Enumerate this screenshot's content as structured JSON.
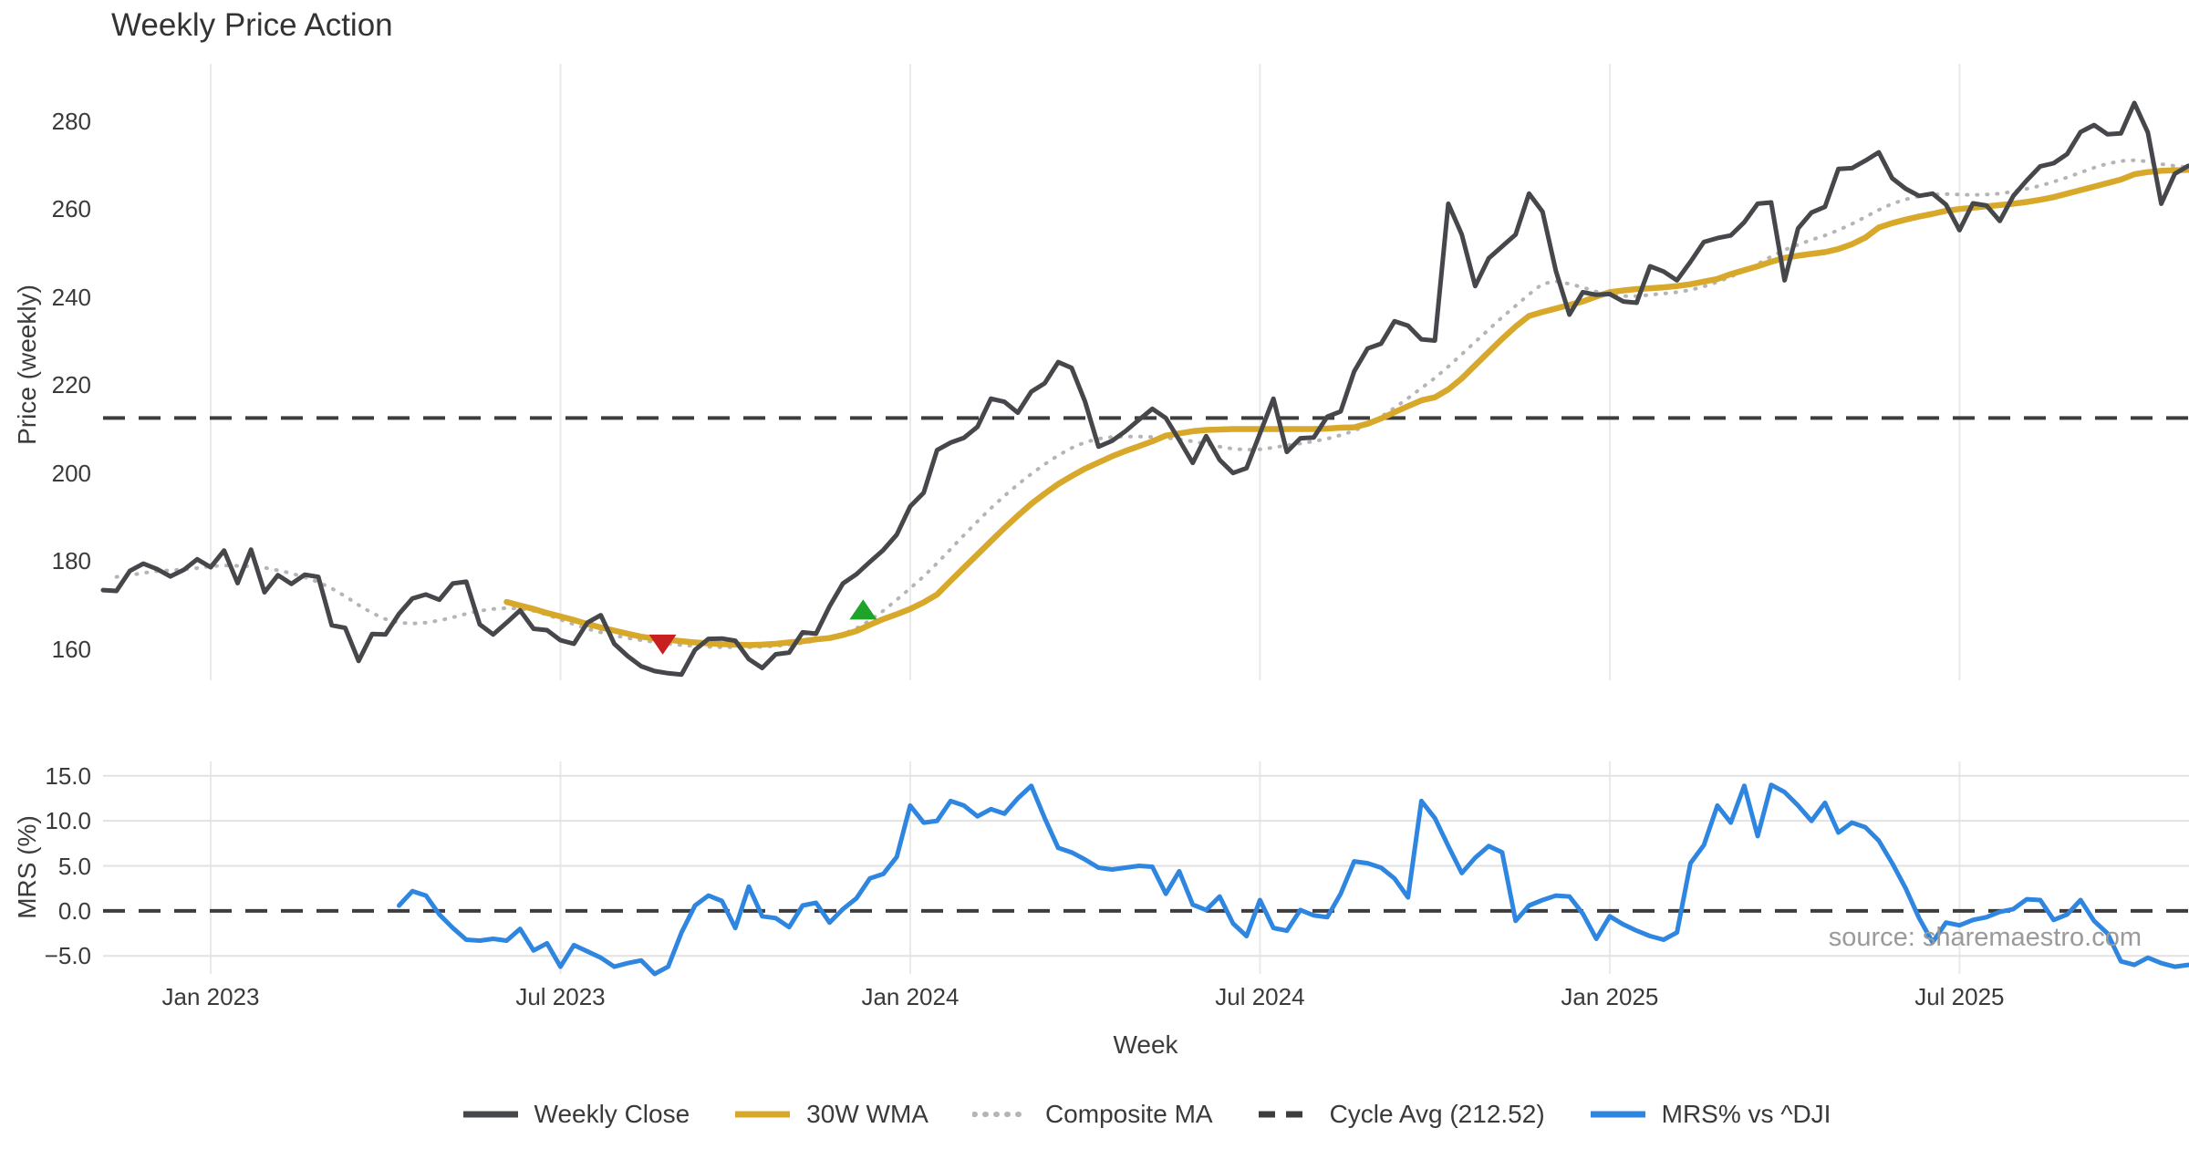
{
  "title": "Weekly Price Action",
  "source_note": "source: sharemaestro.com",
  "chart_data": {
    "type": "line",
    "x_unit": "weeks (weekly data, ~Nov 2022 to ~Nov 2025)",
    "xlabel": "Week",
    "total_weeks": 155.06,
    "xticks": [
      {
        "week": 8,
        "label": "Jan 2023"
      },
      {
        "week": 34,
        "label": "Jul 2023"
      },
      {
        "week": 60,
        "label": "Jan 2024"
      },
      {
        "week": 86,
        "label": "Jul 2024"
      },
      {
        "week": 112,
        "label": "Jan 2025"
      },
      {
        "week": 138,
        "label": "Jul 2025"
      }
    ],
    "panels": {
      "price": {
        "ylabel": "Price (weekly)",
        "ylim": [
          152.9,
          293.0
        ],
        "yticks": [
          {
            "v": 160,
            "label": "160"
          },
          {
            "v": 180,
            "label": "180"
          },
          {
            "v": 200,
            "label": "200"
          },
          {
            "v": 220,
            "label": "220"
          },
          {
            "v": 240,
            "label": "240"
          },
          {
            "v": 260,
            "label": "260"
          },
          {
            "v": 280,
            "label": "280"
          }
        ],
        "grid_y": []
      },
      "mrs": {
        "ylabel": "MRS (%)",
        "ylim": [
          -7.0,
          16.6
        ],
        "yticks": [
          {
            "v": 15,
            "label": "15.0"
          },
          {
            "v": 10,
            "label": "10.0"
          },
          {
            "v": 5,
            "label": "5.0"
          },
          {
            "v": 0,
            "label": "0.0"
          },
          {
            "v": -5,
            "label": "−5.0"
          }
        ],
        "grid_y": [
          15,
          10,
          5,
          -5
        ]
      }
    },
    "hlines": [
      {
        "panel": "price",
        "value": 212.52,
        "color": "#3d3d3d",
        "width": 4,
        "dash": "24 15",
        "name": "cycle-avg-line"
      },
      {
        "panel": "mrs",
        "value": 0,
        "color": "#3d3d3d",
        "width": 4,
        "dash": "24 15",
        "name": "zero-line"
      }
    ],
    "series": [
      {
        "name": "Composite MA",
        "panel": "price",
        "color": "#b5b5b5",
        "width": 4,
        "style": "dotted",
        "start_week": 1,
        "values": [
          176.4,
          176.8,
          177.3,
          177.7,
          177.9,
          178.1,
          178.4,
          178.8,
          179.0,
          178.9,
          178.8,
          178.5,
          177.9,
          177.2,
          176.3,
          175.2,
          173.8,
          172.0,
          170.0,
          168.2,
          166.8,
          166.0,
          165.8,
          166.0,
          166.5,
          167.2,
          168.0,
          168.7,
          169.1,
          169.3,
          169.2,
          168.7,
          167.8,
          166.7,
          165.6,
          164.6,
          163.8,
          163.1,
          162.5,
          162.0,
          161.6,
          161.2,
          160.9,
          160.7,
          160.5,
          160.4,
          160.4,
          160.4,
          160.5,
          160.7,
          161.0,
          161.4,
          161.9,
          162.5,
          163.4,
          164.7,
          166.5,
          168.7,
          171.2,
          173.8,
          176.5,
          179.5,
          182.7,
          185.9,
          189.0,
          192.0,
          194.8,
          197.4,
          199.8,
          202.0,
          204.0,
          205.7,
          207.0,
          207.8,
          208.2,
          208.3,
          208.3,
          208.2,
          208.0,
          207.7,
          207.2,
          206.6,
          206.0,
          205.5,
          205.3,
          205.4,
          205.8,
          206.3,
          206.7,
          207.2,
          207.8,
          208.6,
          209.6,
          211.0,
          212.8,
          214.8,
          217.0,
          219.3,
          221.6,
          224.2,
          227.0,
          229.8,
          232.6,
          235.4,
          238.0,
          240.6,
          243.0,
          243.6,
          243.0,
          242.2,
          241.2,
          240.5,
          240.2,
          240.2,
          240.5,
          240.8,
          241.1,
          241.6,
          242.4,
          243.4,
          244.6,
          246.0,
          247.5,
          249.2,
          250.7,
          251.9,
          253.0,
          254.0,
          255.2,
          256.6,
          258.2,
          259.8,
          261.2,
          262.2,
          262.9,
          263.3,
          263.4,
          263.3,
          263.2,
          263.3,
          263.5,
          264.0,
          264.6,
          265.3,
          266.2,
          267.2,
          268.3,
          269.4,
          270.3,
          270.9,
          271.1,
          270.8,
          270.2,
          269.8,
          269.5
        ]
      },
      {
        "name": "30W WMA",
        "panel": "price",
        "color": "#d7a82a",
        "width": 6.5,
        "style": "solid",
        "start_week": 30,
        "values": [
          170.7,
          169.9,
          169.1,
          168.2,
          167.4,
          166.6,
          165.7,
          164.9,
          164.2,
          163.5,
          162.8,
          162.4,
          162.1,
          161.8,
          161.5,
          161.3,
          161.1,
          161.0,
          160.9,
          161.0,
          161.2,
          161.5,
          161.8,
          162.2,
          162.5,
          163.2,
          164.1,
          165.5,
          166.8,
          167.9,
          169.1,
          170.6,
          172.4,
          175.5,
          178.5,
          181.5,
          184.5,
          187.5,
          190.3,
          193.0,
          195.3,
          197.5,
          199.3,
          201.0,
          202.4,
          203.8,
          205.0,
          206.1,
          207.2,
          208.5,
          209.0,
          209.5,
          209.8,
          209.9,
          210.0,
          210.0,
          210.0,
          210.0,
          210.0,
          210.0,
          210.0,
          210.1,
          210.3,
          210.4,
          211.2,
          212.4,
          213.8,
          215.2,
          216.5,
          217.2,
          219.0,
          221.5,
          224.5,
          227.5,
          230.5,
          233.3,
          235.7,
          236.6,
          237.4,
          238.2,
          239.0,
          240.1,
          241.1,
          241.5,
          241.8,
          242.0,
          242.2,
          242.5,
          242.9,
          243.5,
          244.1,
          245.2,
          246.1,
          247.0,
          248.0,
          248.9,
          249.4,
          249.8,
          250.2,
          250.9,
          252.0,
          253.5,
          255.8,
          256.8,
          257.6,
          258.3,
          258.9,
          259.6,
          260.0,
          260.3,
          260.6,
          260.9,
          261.2,
          261.6,
          262.1,
          262.7,
          263.5,
          264.3,
          265.1,
          265.9,
          266.7,
          267.9,
          268.4,
          268.7,
          268.8,
          268.9
        ]
      },
      {
        "name": "Weekly Close",
        "panel": "price",
        "color": "#45474b",
        "width": 5,
        "style": "solid",
        "start_week": 0,
        "values": [
          173.4,
          173.2,
          177.8,
          179.4,
          178.2,
          176.5,
          178.0,
          180.4,
          178.6,
          182.4,
          175.0,
          182.6,
          172.9,
          176.8,
          174.8,
          176.9,
          176.4,
          165.4,
          164.8,
          157.3,
          163.4,
          163.3,
          168.0,
          171.5,
          172.4,
          171.2,
          174.9,
          175.3,
          165.6,
          163.3,
          166.0,
          168.8,
          164.6,
          164.3,
          162.0,
          161.2,
          166.0,
          167.7,
          161.2,
          158.4,
          156.1,
          155.0,
          154.5,
          154.2,
          159.8,
          162.3,
          162.4,
          161.9,
          157.7,
          155.7,
          158.8,
          159.2,
          163.8,
          163.5,
          169.7,
          174.9,
          177.0,
          179.8,
          182.5,
          186.0,
          192.4,
          195.5,
          205.2,
          206.9,
          208.0,
          210.5,
          216.9,
          216.2,
          213.7,
          218.5,
          220.4,
          225.2,
          223.9,
          216.2,
          206.0,
          207.3,
          209.5,
          212.1,
          214.6,
          212.5,
          207.5,
          202.3,
          208.4,
          203.0,
          200.0,
          201.1,
          209.0,
          216.9,
          204.8,
          207.9,
          208.1,
          212.8,
          214.0,
          223.1,
          228.3,
          229.4,
          234.5,
          233.5,
          230.4,
          230.1,
          261.2,
          254.2,
          242.5,
          248.8,
          251.5,
          254.2,
          263.5,
          259.4,
          245.9,
          236.0,
          241.1,
          240.5,
          240.7,
          239.0,
          238.7,
          247.0,
          245.8,
          243.8,
          248.0,
          252.5,
          253.4,
          254.0,
          257.0,
          261.2,
          261.5,
          243.8,
          255.6,
          259.2,
          260.5,
          269.1,
          269.3,
          271.0,
          272.9,
          267.0,
          264.6,
          263.0,
          263.5,
          261.0,
          255.2,
          261.3,
          260.8,
          257.3,
          263.0,
          266.5,
          269.7,
          270.4,
          272.5,
          277.5,
          279.1,
          277.0,
          277.2,
          284.1,
          277.4,
          261.2,
          268.0,
          269.8
        ]
      },
      {
        "name": "MRS% vs ^DJI",
        "panel": "mrs",
        "color": "#2e86e0",
        "width": 5,
        "style": "solid",
        "start_week": 22,
        "values": [
          0.6,
          2.2,
          1.7,
          -0.4,
          -1.9,
          -3.2,
          -3.3,
          -3.1,
          -3.3,
          -2.0,
          -4.4,
          -3.6,
          -6.2,
          -3.8,
          -4.5,
          -5.2,
          -6.2,
          -5.8,
          -5.5,
          -7.0,
          -6.2,
          -2.4,
          0.6,
          1.7,
          1.1,
          -1.9,
          2.7,
          -0.6,
          -0.8,
          -1.8,
          0.6,
          0.9,
          -1.3,
          0.2,
          1.4,
          3.6,
          4.1,
          6.0,
          11.7,
          9.8,
          10.0,
          12.2,
          11.7,
          10.5,
          11.3,
          10.8,
          12.5,
          13.9,
          10.3,
          7.0,
          6.5,
          5.7,
          4.8,
          4.6,
          4.8,
          5.0,
          4.9,
          1.9,
          4.4,
          0.7,
          0.1,
          1.6,
          -1.4,
          -2.8,
          1.2,
          -1.9,
          -2.2,
          0.1,
          -0.5,
          -0.7,
          1.9,
          5.5,
          5.3,
          4.8,
          3.6,
          1.5,
          12.2,
          10.3,
          7.2,
          4.2,
          5.9,
          7.2,
          6.5,
          -1.1,
          0.6,
          1.2,
          1.7,
          1.6,
          -0.3,
          -3.1,
          -0.6,
          -1.5,
          -2.2,
          -2.8,
          -3.2,
          -2.4,
          5.3,
          7.3,
          11.7,
          9.8,
          13.9,
          8.3,
          14.0,
          13.2,
          11.7,
          10.0,
          12.0,
          8.7,
          9.8,
          9.3,
          7.8,
          5.3,
          2.5,
          -0.8,
          -3.5,
          -1.3,
          -1.6,
          -1.0,
          -0.7,
          -0.1,
          0.2,
          1.3,
          1.2,
          -1.0,
          -0.4,
          1.2,
          -1.1,
          -2.5,
          -5.6,
          -6.0,
          -5.2,
          -5.8,
          -6.2,
          -6.0
        ]
      }
    ],
    "markers": [
      {
        "shape": "triangle-down",
        "color": "#c82020",
        "week": 41.6,
        "price": 161.0,
        "name": "sell-signal-marker"
      },
      {
        "shape": "triangle-up",
        "color": "#1fa32a",
        "week": 56.5,
        "price": 169.0,
        "name": "buy-signal-marker"
      }
    ],
    "legend": [
      {
        "label": "Weekly Close",
        "swatch": "solid",
        "color": "#45474b"
      },
      {
        "label": "30W WMA",
        "swatch": "solid",
        "color": "#d7a82a"
      },
      {
        "label": "Composite MA",
        "swatch": "dotted",
        "color": "#b5b5b5"
      },
      {
        "label": "Cycle Avg (212.52)",
        "swatch": "dashed",
        "color": "#3d3d3d"
      },
      {
        "label": "MRS% vs ^DJI",
        "swatch": "solid",
        "color": "#2e86e0"
      }
    ],
    "grid_color_vertical": "#e9e9e9",
    "grid_color_horizontal": "#e2e2e2"
  }
}
